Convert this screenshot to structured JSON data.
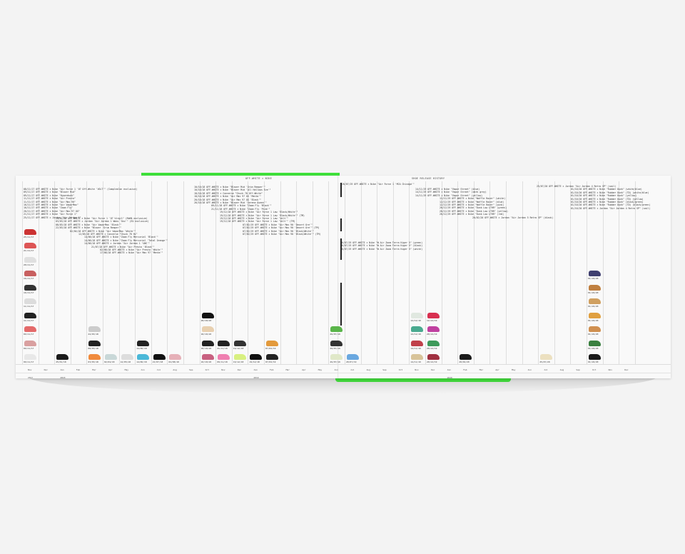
{
  "headers": {
    "left": "OFF-WHITE × NIKE",
    "right": "SHOE RELEASE HISTORY"
  },
  "months": [
    "Nov",
    "Dec",
    "Jan",
    "Feb",
    "Mar",
    "Apr",
    "May",
    "Jun",
    "Jul",
    "Aug",
    "Sep",
    "Oct",
    "Nov",
    "Dec",
    "Jan",
    "Feb",
    "Mar",
    "Apr",
    "May",
    "Jun",
    "Jul",
    "Aug",
    "Sep",
    "Oct",
    "Nov",
    "Dec",
    "Jan",
    "Feb",
    "Mar",
    "Apr",
    "May",
    "Jun",
    "Jul",
    "Aug",
    "Sep",
    "Oct",
    "Nov",
    "Dec"
  ],
  "years": [
    {
      "label": "2017",
      "month_index": 0
    },
    {
      "label": "2018",
      "month_index": 2
    },
    {
      "label": "2019",
      "month_index": 14
    },
    {
      "label": "2020",
      "month_index": 26
    }
  ],
  "entries": [
    [
      "08/11/17  OFF-WHITE × Nike \"Air Force 1 '07 Off-White 'VOLT'\" (ComplexCon exclusive)",
      "09/11/17  OFF-WHITE × Nike \"Blazer Mid\"",
      "09/11/17  OFF-WHITE × Nike \"Hyperdunk\"",
      "11/11/17  OFF-WHITE × Nike \"Air Presto\"",
      "11/11/17  OFF-WHITE × Nike \"Air Max 90\"",
      "16/11/17  OFF-WHITE × Nike \"Air VaporMax\"",
      "16/11/17  OFF-WHITE × Nike \"Zoom Fly\"",
      "20/11/17  OFF-WHITE × Nike \"Air Max 97 OG\"",
      "21/11/17  OFF-WHITE × Nike \"Air Force 1\"",
      "25/11/17  OFF-WHITE × Jordan \"Air Jordan 1\""
    ],
    [
      "25/01/18  OFF-WHITE × Nike \"Air Force 1 '07 Virgil\" (MoMA exclusive)",
      "03/03/18  OFF-WHITE × Jordan \"Air Jordan 1 Wmns 'Unc'\" (EU exclusive)",
      "08/03/18  OFF-WHITE × Nike \"Air VaporMax 'Black'\"",
      "22/03/18  OFF-WHITE × Nike \"Blazer 'Grim Reaper'\"",
      "02/04/18  OFF-WHITE × Nike \"Air VaporMax 'White'\"",
      "12/05/18  OFF-WHITE × Converse \"Chuck 70 Hi\"",
      "14/06/18  OFF-WHITE × Nike \"Zoom Fly Mercurial 'Black'\"",
      "14/06/18  OFF-WHITE × Nike \"Zoom Fly Mercurial 'Total Orange'\"",
      "14/06/18  OFF-WHITE × Jordan \"Air Jordan 1 'UNC'\"",
      "21/07/18  OFF-WHITE × Nike \"Air Presto 'Black'\"",
      "02/08/18  OFF-WHITE × Nike \"Air Presto 'White'\"",
      "17/08/18  OFF-WHITE × Nike \"Air Max 97 'Menta'\""
    ],
    [
      "10/10/18  OFF-WHITE × Nike \"Blazer Mid 'Grim Reaper'\"",
      "10/10/18  OFF-WHITE × Nike \"Blazer Mid 'All Hallows Eve'\"",
      "18/10/18  OFF-WHITE × Converse \"Chuck 70 Off-White\"",
      "18/10/18  OFF-WHITE × Nike \"Air Max 97 OG 'Menta'\"",
      "20/10/18  OFF-WHITE × Nike \"Air Max 97 OG 'Black'\"",
      "26/10/18  OFF-WHITE × Nike \"Blazer Mid 'Serena Queen'\"",
      "09/11/18  OFF-WHITE × Nike \"Zoom Fly 'Black'\"",
      "21/11/18  OFF-WHITE × Nike \"Zoom Fly 'Pink'\"",
      "19/12/18  OFF-WHITE × Nike \"Air Force 1 Low 'Black/White'\"",
      "19/12/18  OFF-WHITE × Nike \"Air Force 1 Low 'Black/White'\" (TM)",
      "19/12/18  OFF-WHITE × Nike \"Air Force 1 Low 'Volt'\"",
      "19/12/18  OFF-WHITE × Nike \"Air Force 1 Low 'Volt'\" (TM)",
      "07/02/19  OFF-WHITE × Nike \"Air Max 90 'Desert Ore'\"",
      "07/02/19  OFF-WHITE × Nike \"Air Max 90 'Desert Ore'\" (TM)",
      "07/02/19  OFF-WHITE × Nike \"Air Max 90 'Black/White'\"",
      "07/02/19  OFF-WHITE × Nike \"Air Max 90 'Black/White'\" (TM)"
    ],
    [
      "26/07/19  OFF-WHITE × Nike \"W Air Zoom Terra Kiger 5\" (green)",
      "26/07/19  OFF-WHITE × Nike \"W Air Zoom Terra Kiger 5\" (black)",
      "26/07/19  OFF-WHITE × Nike \"W Air Zoom Terra Kiger 5\" (white)"
    ],
    [
      "20/07/19  OFF-WHITE × Nike \"Air Force 1 'MCA Chicago'\""
    ],
    [
      "14/11/19  OFF-WHITE × Nike \"Vapor Street\" (blue)",
      "14/11/19  OFF-WHITE × Nike \"Vapor Street\" (dark grey)",
      "14/11/19  OFF-WHITE × Nike \"Vapor Street\" (yellow)",
      "12/12/19  OFF-WHITE × Nike \"Waffle Racer\" (white)",
      "12/12/19  OFF-WHITE × Nike \"Waffle Racer\" (blue)",
      "12/12/19  OFF-WHITE × Nike \"Waffle Racer\" (pink)",
      "20/12/19  OFF-WHITE × Nike \"Dunk Low LTHR\" (green)",
      "20/12/19  OFF-WHITE × Nike \"Dunk Low LTHR\" (yellow)",
      "20/12/19  OFF-WHITE × Nike \"Dunk Low LTHR\" (red)",
      "20/02/20  OFF-WHITE × Jordan \"Air Jordan 5 Retro SP\" (black)"
    ],
    [
      "25/07/20  OFF-WHITE × Jordan \"Air Jordan 4 Retro SP\" (sail)",
      "01/10/20  OFF-WHITE × Nike \"Rubber Dunk\" (white/blue)",
      "01/10/20  OFF-WHITE × Nike \"Rubber Dunk\" (TD) (white/blue)",
      "01/10/20  OFF-WHITE × Nike \"Rubber Dunk\" (yellow)",
      "01/10/20  OFF-WHITE × Nike \"Rubber Dunk\" (TD) (yellow)",
      "01/10/20  OFF-WHITE × Nike \"Rubber Dunk\" (black/green)",
      "01/10/20  OFF-WHITE × Nike \"Rubber Dunk\" (TD) (black/green)",
      "01/10/20  OFF-WHITE × Jordan \"Air Jordan 4 Retro SP\" (sail)"
    ]
  ],
  "shoes": [
    {
      "m": 0,
      "date": "09/11/17",
      "color": "#e8e8e8"
    },
    {
      "m": 0,
      "date": "09/11/17",
      "color": "#d9a0a0"
    },
    {
      "m": 0,
      "date": "09/11/17",
      "color": "#e46a6a"
    },
    {
      "m": 0,
      "date": "11/11/17",
      "color": "#222"
    },
    {
      "m": 0,
      "date": "11/11/17",
      "color": "#dcdcdc"
    },
    {
      "m": 0,
      "date": "16/11/17",
      "color": "#333"
    },
    {
      "m": 0,
      "date": "16/11/17",
      "color": "#c86060"
    },
    {
      "m": 0,
      "date": "20/11/17",
      "color": "#e0e0e0"
    },
    {
      "m": 0,
      "date": "21/11/17",
      "color": "#d55"
    },
    {
      "m": 0,
      "date": "25/11/17",
      "color": "#c33"
    },
    {
      "m": 2,
      "date": "25/01/18",
      "color": "#1a1a1a"
    },
    {
      "m": 4,
      "date": "03/03/18",
      "color": "#f08a3c"
    },
    {
      "m": 4,
      "date": "08/03/18",
      "color": "#222"
    },
    {
      "m": 4,
      "date": "22/03/18",
      "color": "#ccc"
    },
    {
      "m": 5,
      "date": "02/04/18",
      "color": "#c9d8d8"
    },
    {
      "m": 6,
      "date": "12/05/18",
      "color": "#ddd"
    },
    {
      "m": 7,
      "date": "14/06/18",
      "color": "#4bb8d8"
    },
    {
      "m": 7,
      "date": "14/06/18",
      "color": "#222"
    },
    {
      "m": 8,
      "date": "21/07/18",
      "color": "#111"
    },
    {
      "m": 9,
      "date": "02/08/18",
      "color": "#e6b0b8"
    },
    {
      "m": 11,
      "date": "10/10/18",
      "color": "#c86080"
    },
    {
      "m": 11,
      "date": "18/10/18",
      "color": "#222"
    },
    {
      "m": 11,
      "date": "18/10/18",
      "color": "#e8d0b0"
    },
    {
      "m": 11,
      "date": "20/10/18",
      "color": "#111"
    },
    {
      "m": 12,
      "date": "09/11/18",
      "color": "#ef7fb0"
    },
    {
      "m": 12,
      "date": "21/11/18",
      "color": "#222"
    },
    {
      "m": 13,
      "date": "19/12/18",
      "color": "#d8f080"
    },
    {
      "m": 13,
      "date": "19/12/18",
      "color": "#333"
    },
    {
      "m": 14,
      "date": "19/12/18",
      "color": "#111"
    },
    {
      "m": 15,
      "date": "07/02/19",
      "color": "#222"
    },
    {
      "m": 15,
      "date": "07/02/19",
      "color": "#e39a3c"
    },
    {
      "m": 19,
      "date": "26/07/19",
      "color": "#e0e8c8"
    },
    {
      "m": 19,
      "date": "26/07/19",
      "color": "#333"
    },
    {
      "m": 19,
      "date": "26/07/19",
      "color": "#5ab54a"
    },
    {
      "m": 20,
      "date": "20/07/19",
      "color": "#6aa8e0"
    },
    {
      "m": 24,
      "date": "14/11/19",
      "color": "#d8c49a"
    },
    {
      "m": 24,
      "date": "14/11/19",
      "color": "#c0404a"
    },
    {
      "m": 24,
      "date": "12/12/19",
      "color": "#4aaa90"
    },
    {
      "m": 24,
      "date": "12/12/19",
      "color": "#e0e8e0"
    },
    {
      "m": 25,
      "date": "20/12/19",
      "color": "#a03040"
    },
    {
      "m": 25,
      "date": "20/12/19",
      "color": "#3e9a5a"
    },
    {
      "m": 25,
      "date": "20/12/19",
      "color": "#c040a0"
    },
    {
      "m": 25,
      "date": "12/12/19",
      "color": "#d83050"
    },
    {
      "m": 27,
      "date": "20/02/20",
      "color": "#1a1a1a"
    },
    {
      "m": 32,
      "date": "25/07/20",
      "color": "#ece0c0"
    },
    {
      "m": 35,
      "date": "01/10/20",
      "color": "#1a1a1a"
    },
    {
      "m": 35,
      "date": "01/10/20",
      "color": "#3a8040"
    },
    {
      "m": 35,
      "date": "01/10/20",
      "color": "#d09050"
    },
    {
      "m": 35,
      "date": "01/10/20",
      "color": "#e0a040"
    },
    {
      "m": 35,
      "date": "01/10/20",
      "color": "#d0a060"
    },
    {
      "m": 35,
      "date": "01/10/20",
      "color": "#c08040"
    },
    {
      "m": 35,
      "date": "01/10/20",
      "color": "#404070"
    }
  ]
}
